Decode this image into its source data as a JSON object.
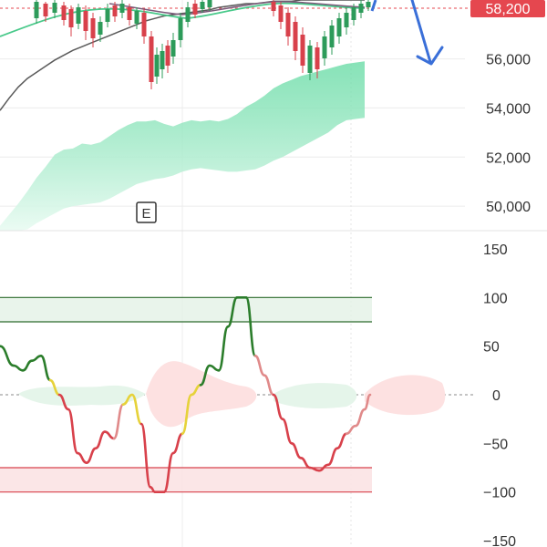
{
  "chart_data": [
    {
      "type": "candlestick",
      "title": "",
      "price_axis": {
        "ticks": [
          50000,
          52000,
          54000,
          56000
        ],
        "labels": [
          "50,000",
          "52,000",
          "54,000",
          "56,000"
        ],
        "ylim": [
          49000,
          58400
        ]
      },
      "current_price": {
        "value": 58200,
        "label": "58,200",
        "color": "#e5474f"
      },
      "event_marker": {
        "label": "E"
      },
      "forecast_arrow": {
        "color": "#3a6fd8",
        "direction": "down"
      },
      "grid": true,
      "colors": {
        "up": "#2d9b5a",
        "down": "#d8414b",
        "ma_fast": "#48c98a",
        "ma_slow": "#7b5a7a",
        "ma_long": "#5a5a5a",
        "band_fill": "#7ee0b4"
      },
      "series": [
        {
          "x": [
            0,
            10,
            20,
            30,
            40,
            50,
            60,
            70,
            80,
            90,
            100,
            110,
            120,
            130,
            140,
            150,
            160,
            170,
            180,
            190,
            200,
            210,
            220,
            230,
            240,
            250,
            260,
            270,
            280,
            290,
            300,
            310,
            320,
            330,
            340,
            350,
            360,
            370,
            380,
            390,
            400
          ],
          "long_ma": [
            53900,
            54400,
            54850,
            55200,
            55450,
            55700,
            55950,
            56150,
            56350,
            56500,
            56650,
            56800,
            56950,
            57100,
            57250,
            57400,
            57550,
            57650,
            57750,
            57800,
            57850,
            57900,
            57950,
            58000,
            58100,
            58150,
            58200,
            58250,
            58250,
            58300,
            58350,
            58350,
            58350,
            58400,
            58400,
            58400,
            58400,
            58400,
            58400,
            58400,
            58400
          ],
          "band_top": [
            49200,
            49650,
            50100,
            50600,
            51150,
            51600,
            52100,
            52300,
            52350,
            52550,
            52500,
            52600,
            52850,
            53100,
            53300,
            53450,
            53450,
            53500,
            53350,
            53250,
            53400,
            53500,
            53450,
            53500,
            53450,
            53550,
            53750,
            54050,
            54250,
            54500,
            54800,
            55000,
            55150,
            55300,
            55400,
            55500,
            55600,
            55700,
            55800,
            55850,
            55900
          ],
          "band_bottom": [
            49000,
            49000,
            49000,
            49050,
            49300,
            49500,
            49700,
            49900,
            50000,
            50050,
            50100,
            50150,
            50300,
            50500,
            50700,
            50900,
            51000,
            51100,
            51150,
            51250,
            51400,
            51500,
            51550,
            51500,
            51450,
            51400,
            51400,
            51450,
            51500,
            51650,
            51850,
            52000,
            52200,
            52400,
            52600,
            52800,
            53000,
            53300,
            53500,
            53550,
            53600
          ]
        }
      ]
    },
    {
      "type": "line",
      "title": "",
      "xlabel": "",
      "ylabel": "",
      "ylim": [
        -150,
        150
      ],
      "ticks": [
        150,
        100,
        50,
        0,
        -50,
        -100,
        -150
      ],
      "tick_labels": [
        "150",
        "100",
        "50",
        "0",
        "−50",
        "−100",
        "−150"
      ],
      "overbought_zone": [
        75,
        100
      ],
      "oversold_zone": [
        -100,
        -75
      ],
      "grid": true,
      "colors": {
        "bullish": "#2b7d2b",
        "neutral": "#e6d23a",
        "bearish": "#d8414b",
        "transition": "#e08a8a",
        "ob_zone": "#2d6a2d",
        "os_zone": "#d8414b"
      },
      "series": [
        {
          "x": [
            0,
            15,
            25,
            35,
            45,
            55,
            65,
            75,
            85,
            95,
            105,
            115,
            125,
            135,
            145,
            155,
            165,
            170,
            180,
            190,
            200,
            210,
            220,
            230,
            240,
            250,
            260,
            270,
            280,
            290,
            300,
            310,
            320,
            330,
            340,
            350,
            360,
            370,
            380,
            390,
            400,
            406
          ],
          "y": [
            50,
            30,
            25,
            35,
            40,
            15,
            0,
            -15,
            -60,
            -70,
            -55,
            -38,
            -45,
            -10,
            0,
            -30,
            -95,
            -100,
            -100,
            -60,
            -40,
            0,
            10,
            30,
            25,
            70,
            100,
            100,
            40,
            20,
            0,
            -25,
            -50,
            -65,
            -75,
            -78,
            -72,
            -55,
            -40,
            -32,
            -15,
            0
          ],
          "colors": [
            "bullish",
            "bullish",
            "bullish",
            "bullish",
            "bullish",
            "neutral",
            "bearish",
            "bearish",
            "bearish",
            "bearish",
            "bearish",
            "bearish",
            "transition",
            "neutral",
            "neutral",
            "bearish",
            "bearish",
            "bearish",
            "bearish",
            "bearish",
            "neutral",
            "neutral",
            "bullish",
            "bullish",
            "bullish",
            "bullish",
            "bullish",
            "bullish",
            "transition",
            "transition",
            "bearish",
            "bearish",
            "bearish",
            "bearish",
            "bearish",
            "bearish",
            "bearish",
            "bearish",
            "transition",
            "transition",
            "transition",
            "transition"
          ]
        }
      ]
    }
  ]
}
